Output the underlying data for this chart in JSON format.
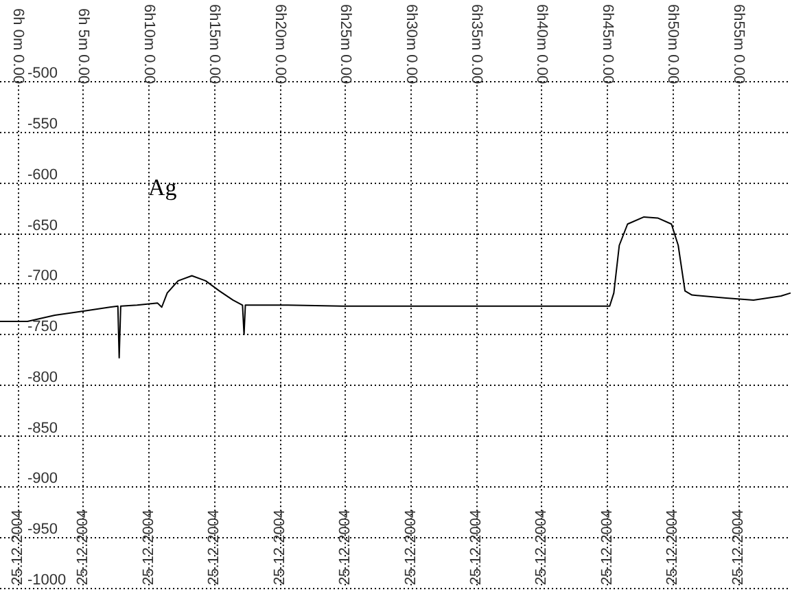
{
  "chart_data": {
    "type": "line",
    "annotations": [
      "Ag"
    ],
    "x": [
      "2004-12-25T05:58:38",
      "2004-12-25T06:00:44",
      "2004-12-25T06:02:49",
      "2004-12-25T06:04:55",
      "2004-12-25T06:07:01",
      "2004-12-25T06:07:38",
      "2004-12-25T06:07:44",
      "2004-12-25T06:07:51",
      "2004-12-25T06:09:06",
      "2004-12-25T06:10:40",
      "2004-12-25T06:10:59",
      "2004-12-25T06:11:24",
      "2004-12-25T06:12:14",
      "2004-12-25T06:13:17",
      "2004-12-25T06:14:20",
      "2004-12-25T06:15:23",
      "2004-12-25T06:16:25",
      "2004-12-25T06:17:09",
      "2004-12-25T06:17:16",
      "2004-12-25T06:17:22",
      "2004-12-25T06:18:31",
      "2004-12-25T06:20:37",
      "2004-12-25T06:24:47",
      "2004-12-25T06:30:01",
      "2004-12-25T06:35:15",
      "2004-12-25T06:40:29",
      "2004-12-25T06:45:11",
      "2004-12-25T06:45:30",
      "2004-12-25T06:45:55",
      "2004-12-25T06:46:33",
      "2004-12-25T06:47:48",
      "2004-12-25T06:48:51",
      "2004-12-25T06:49:54",
      "2004-12-25T06:50:25",
      "2004-12-25T06:50:56",
      "2004-12-25T06:51:28",
      "2004-12-25T06:54:05",
      "2004-12-25T06:56:10",
      "2004-12-25T06:58:16",
      "2004-12-25T06:59:00"
    ],
    "series": [
      {
        "color": "#000000",
        "values": [
          -737,
          -737,
          -731,
          -727,
          -723,
          -722,
          -773,
          -722,
          -721,
          -719,
          -723,
          -709,
          -697,
          -692,
          -697,
          -707,
          -716,
          -721,
          -750,
          -721,
          -721,
          -721,
          -722,
          -722,
          -722,
          -722,
          -722,
          -709,
          -662,
          -641,
          -634,
          -635,
          -641,
          -662,
          -707,
          -711,
          -714,
          -716,
          -712,
          -709
        ]
      }
    ],
    "xlim": [
      "2004-12-25T05:58:38",
      "2004-12-25T06:59:00"
    ],
    "xticks": [
      {
        "value": "2004-12-25T06:00",
        "label": "25.12.2004"
      },
      {
        "value": "2004-12-25T06:05",
        "label": "25.12.2004"
      },
      {
        "value": "2004-12-25T06:10",
        "label": "25.12.2004"
      },
      {
        "value": "2004-12-25T06:15",
        "label": "25.12.2004"
      },
      {
        "value": "2004-12-25T06:20",
        "label": "25.12.2004"
      },
      {
        "value": "2004-12-25T06:25",
        "label": "25.12.2004"
      },
      {
        "value": "2004-12-25T06:30",
        "label": "25.12.2004"
      },
      {
        "value": "2004-12-25T06:35",
        "label": "25.12.2004"
      },
      {
        "value": "2004-12-25T06:40",
        "label": "25.12.2004"
      },
      {
        "value": "2004-12-25T06:45",
        "label": "25.12.2004"
      },
      {
        "value": "2004-12-25T06:50",
        "label": "25.12.2004"
      },
      {
        "value": "2004-12-25T06:55",
        "label": "25.12.2004"
      }
    ],
    "x2lim": [
      "2004-12-25T05:58:38",
      "2004-12-25T06:59:00"
    ],
    "x2ticks": [
      {
        "value": "2004-12-25T06:00",
        "label": "6h 0m 0.00"
      },
      {
        "value": "2004-12-25T06:05",
        "label": "6h 5m 0.00"
      },
      {
        "value": "2004-12-25T06:10",
        "label": "6h10m 0.00"
      },
      {
        "value": "2004-12-25T06:15",
        "label": "6h15m 0.00"
      },
      {
        "value": "2004-12-25T06:20",
        "label": "6h20m 0.00"
      },
      {
        "value": "2004-12-25T06:25",
        "label": "6h25m 0.00"
      },
      {
        "value": "2004-12-25T06:30",
        "label": "6h30m 0.00"
      },
      {
        "value": "2004-12-25T06:35",
        "label": "6h35m 0.00"
      },
      {
        "value": "2004-12-25T06:40",
        "label": "6h40m 0.00"
      },
      {
        "value": "2004-12-25T06:45",
        "label": "6h45m 0.00"
      },
      {
        "value": "2004-12-25T06:50",
        "label": "6h50m 0.00"
      },
      {
        "value": "2004-12-25T06:55",
        "label": "6h55m 0.00"
      }
    ],
    "ylim": [
      -1000,
      -500
    ],
    "yticks": [
      -1000,
      -950,
      -900,
      -850,
      -800,
      -750,
      -700,
      -650,
      -600,
      -550,
      -500
    ],
    "grid": true,
    "marker": "none",
    "line_style": "solid"
  }
}
